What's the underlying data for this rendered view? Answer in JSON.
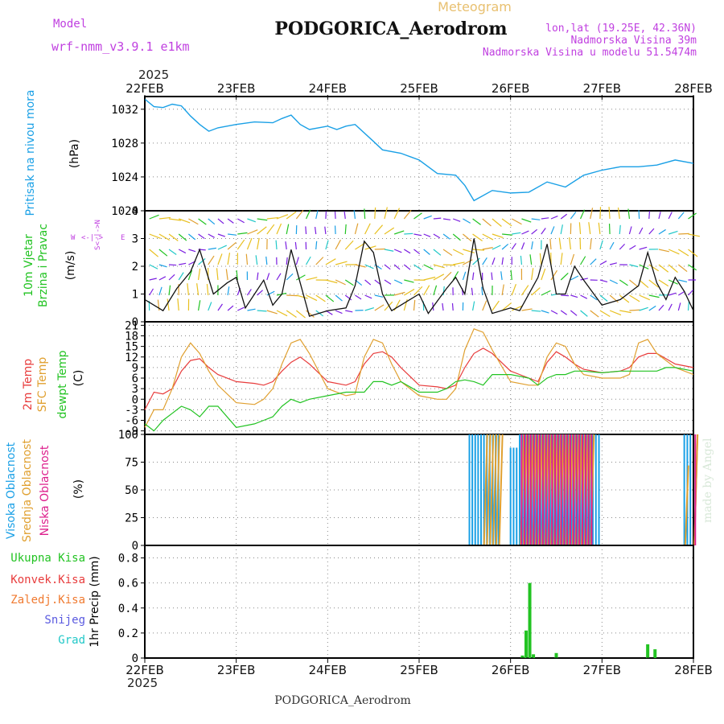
{
  "header": {
    "model_label": "Model",
    "model_name": "wrf-nmm_v3.9.1 e1km",
    "meteogram_label": "Meteogram",
    "station": "PODGORICA_Aerodrom",
    "coords": "lon,lat (19.25E, 42.36N)",
    "elevation": "Nadmorska Visina 39m",
    "model_elevation": "Nadmorska Visina u modelu 51.5474m",
    "year_top": "2025",
    "year_bottom": "2025",
    "footer_station": "PODGORICA_Aerodrom",
    "watermark": "made by Angel"
  },
  "colors": {
    "pressure": "#1aa0e6",
    "temp2m": "#e83c3c",
    "sfctemp": "#e0a030",
    "dewpt": "#22c322",
    "cloud_high": "#1aa0e6",
    "cloud_mid": "#e0a030",
    "cloud_low": "#dd1e8c",
    "precip_total": "#22c322",
    "precip_conv": "#e83c3c",
    "precip_frz": "#f07a30",
    "snow": "#5a5ae0",
    "graupel": "#22c8c8",
    "wind_label": "#22c322",
    "compass": "#c040e0"
  },
  "chart_data": [
    {
      "type": "line",
      "name": "pressure",
      "ylabel_left": "Pritisak na nivou mora",
      "unit": "(hPa)",
      "x_ticks": [
        "22FEB",
        "23FEB",
        "24FEB",
        "25FEB",
        "26FEB",
        "27FEB",
        "28FEB"
      ],
      "ylim": [
        1020,
        1033.5
      ],
      "y_ticks": [
        1020,
        1024,
        1028,
        1032
      ],
      "x": [
        0,
        0.1,
        0.2,
        0.3,
        0.4,
        0.5,
        0.6,
        0.7,
        0.8,
        1.0,
        1.2,
        1.4,
        1.5,
        1.6,
        1.7,
        1.8,
        2.0,
        2.1,
        2.2,
        2.3,
        2.5,
        2.6,
        2.8,
        2.9,
        3.0,
        3.2,
        3.4,
        3.5,
        3.6,
        3.8,
        4.0,
        4.2,
        4.4,
        4.6,
        4.8,
        5.0,
        5.2,
        5.4,
        5.6,
        5.8,
        6.0
      ],
      "y": [
        1033.2,
        1032.3,
        1032.2,
        1032.6,
        1032.4,
        1031.2,
        1030.2,
        1029.4,
        1029.8,
        1030.2,
        1030.5,
        1030.4,
        1030.9,
        1031.3,
        1030.2,
        1029.6,
        1030.0,
        1029.6,
        1030.0,
        1030.2,
        1028.2,
        1027.2,
        1026.8,
        1026.4,
        1026.0,
        1024.4,
        1024.2,
        1023.0,
        1021.2,
        1022.4,
        1022.1,
        1022.2,
        1023.4,
        1022.8,
        1024.2,
        1024.8,
        1025.2,
        1025.2,
        1025.4,
        1026.0,
        1025.6
      ]
    },
    {
      "type": "line",
      "name": "wind",
      "ylabel_left": [
        "10m Vjetar",
        "Brzina i Pravac"
      ],
      "unit": "(m/s)",
      "compass": [
        "W",
        "<-|->",
        "E"
      ],
      "compass_vertical": "S<-|->N",
      "ylim": [
        0,
        4
      ],
      "y_ticks": [
        0,
        1,
        2,
        3,
        4
      ],
      "x": [
        0,
        0.2,
        0.35,
        0.5,
        0.6,
        0.75,
        0.9,
        1.0,
        1.1,
        1.3,
        1.4,
        1.5,
        1.6,
        1.7,
        1.8,
        2.0,
        2.2,
        2.3,
        2.4,
        2.5,
        2.6,
        2.7,
        2.8,
        3.0,
        3.1,
        3.3,
        3.4,
        3.5,
        3.6,
        3.7,
        3.8,
        4.0,
        4.1,
        4.3,
        4.4,
        4.5,
        4.6,
        4.7,
        4.8,
        5.0,
        5.2,
        5.4,
        5.5,
        5.6,
        5.7,
        5.8,
        5.9,
        6.0
      ],
      "y": [
        0.8,
        0.4,
        1.2,
        1.8,
        2.6,
        1.0,
        1.4,
        1.6,
        0.5,
        1.5,
        0.6,
        1.0,
        2.6,
        1.4,
        0.2,
        0.4,
        0.5,
        1.3,
        2.9,
        2.5,
        1.0,
        0.4,
        0.6,
        1.0,
        0.3,
        1.2,
        1.6,
        1.0,
        3.0,
        1.2,
        0.3,
        0.5,
        0.4,
        1.6,
        2.8,
        1.0,
        1.0,
        2.0,
        1.5,
        0.6,
        0.8,
        1.3,
        2.5,
        1.4,
        0.8,
        1.6,
        1.1,
        0.4
      ]
    },
    {
      "type": "line",
      "name": "temperature",
      "ylabel_left": [
        "2m Temp",
        "SFC Temp",
        "dewpt Temp"
      ],
      "unit": "(C)",
      "ylim": [
        -10,
        22
      ],
      "y_ticks": [
        -9,
        -6,
        -3,
        0,
        3,
        6,
        9,
        12,
        15,
        18,
        21
      ],
      "x": [
        0,
        0.1,
        0.2,
        0.3,
        0.4,
        0.5,
        0.6,
        0.7,
        0.8,
        1.0,
        1.2,
        1.3,
        1.4,
        1.5,
        1.6,
        1.7,
        1.8,
        2.0,
        2.2,
        2.3,
        2.4,
        2.5,
        2.6,
        2.7,
        2.8,
        3.0,
        3.2,
        3.3,
        3.4,
        3.5,
        3.6,
        3.7,
        3.8,
        4.0,
        4.2,
        4.3,
        4.4,
        4.5,
        4.6,
        4.7,
        4.8,
        5.0,
        5.2,
        5.3,
        5.4,
        5.5,
        5.6,
        5.7,
        5.8,
        6.0
      ],
      "series": [
        {
          "name": "2m Temp",
          "color_key": "temp2m",
          "values": [
            -3,
            2,
            1.5,
            3,
            8,
            11,
            11.5,
            9,
            7,
            5,
            4.5,
            4,
            5,
            8,
            10.5,
            12,
            10,
            5,
            4,
            5,
            10,
            13,
            13.5,
            12,
            9,
            4,
            3.5,
            3,
            4,
            9,
            13,
            14.5,
            13,
            8,
            6,
            5,
            10.5,
            13.5,
            12,
            10,
            8.5,
            7.5,
            8,
            9,
            12,
            13,
            13,
            11.5,
            10,
            9
          ]
        },
        {
          "name": "SFC Temp",
          "color_key": "sfctemp",
          "values": [
            -8,
            -3,
            -3,
            3,
            12,
            16,
            13,
            8,
            4,
            -1,
            -1.5,
            0,
            3,
            10,
            16,
            17,
            13,
            3,
            1,
            1.5,
            12,
            17,
            16,
            10,
            5,
            1,
            0,
            0,
            3,
            14,
            20,
            19,
            14,
            5,
            4,
            4,
            12,
            16,
            15,
            10,
            7,
            6,
            6,
            7,
            16,
            17,
            13,
            11,
            9,
            7
          ]
        },
        {
          "name": "dewpt Temp",
          "color_key": "dewpt",
          "values": [
            -7,
            -9,
            -6,
            -4,
            -2,
            -3,
            -5,
            -2,
            -2,
            -8,
            -7,
            -6,
            -5,
            -2,
            0,
            -1,
            0,
            1,
            2,
            2,
            2,
            5,
            5,
            4,
            5,
            2,
            2,
            3,
            5,
            5.5,
            5,
            4,
            7,
            7,
            6,
            4,
            6,
            7,
            7,
            8,
            8,
            7.5,
            8,
            8,
            8,
            8,
            8,
            9,
            9,
            8
          ]
        }
      ]
    },
    {
      "type": "bar",
      "name": "clouds",
      "ylabel_left": [
        "Visoka Oblacnost",
        "Srednja Oblacnost",
        "Niska Oblacnost"
      ],
      "unit": "(%)",
      "ylim": [
        0,
        100
      ],
      "y_ticks": [
        0,
        25,
        50,
        75,
        100
      ],
      "series": [
        {
          "name": "Visoka Oblacnost",
          "color_key": "cloud_high",
          "segments": [
            [
              3.55,
              3.9,
              100
            ],
            [
              4.0,
              4.1,
              88
            ],
            [
              4.1,
              5.0,
              100
            ],
            [
              5.9,
              6.0,
              100
            ]
          ]
        },
        {
          "name": "Srednja Oblacnost",
          "color_key": "cloud_mid",
          "segments": [
            [
              3.7,
              3.9,
              100
            ],
            [
              4.1,
              4.9,
              100
            ],
            [
              5.9,
              5.95,
              72
            ],
            [
              6.0,
              6.0,
              100
            ],
            [
              6.0,
              6.0,
              100
            ]
          ]
        },
        {
          "name": "Niska Oblacnost",
          "color_key": "cloud_low",
          "segments": [
            [
              4.1,
              4.9,
              100
            ],
            [
              6.0,
              6.0,
              100
            ]
          ]
        }
      ]
    },
    {
      "type": "bar",
      "name": "precipitation",
      "ylabel_left": [
        "Ukupna Kisa",
        "Konvek.Kisa",
        "Zaledj.Kisa",
        "Snijeg",
        "Grad"
      ],
      "unit": "1hr Precip (mm)",
      "ylim": [
        0,
        0.9
      ],
      "y_ticks": [
        0,
        0.2,
        0.4,
        0.6,
        0.8
      ],
      "x_ticks_bottom": [
        "22FEB",
        "23FEB",
        "24FEB",
        "25FEB",
        "26FEB",
        "27FEB",
        "28FEB"
      ],
      "bars": [
        {
          "x": 4.13,
          "total": 0.02
        },
        {
          "x": 4.17,
          "total": 0.22
        },
        {
          "x": 4.21,
          "total": 0.6
        },
        {
          "x": 4.25,
          "total": 0.03
        },
        {
          "x": 4.5,
          "total": 0.04
        },
        {
          "x": 5.5,
          "total": 0.11
        },
        {
          "x": 5.58,
          "total": 0.07
        }
      ]
    }
  ]
}
